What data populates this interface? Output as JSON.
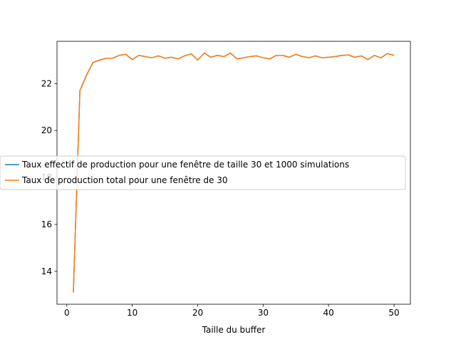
{
  "chart_data": {
    "type": "line",
    "title": "",
    "xlabel": "Taille du buffer",
    "ylabel": "",
    "xlim": [
      -1.5,
      52.5
    ],
    "ylim": [
      12.6,
      23.8
    ],
    "xticks": [
      0,
      10,
      20,
      30,
      40,
      50
    ],
    "yticks": [
      14,
      16,
      18,
      20,
      22
    ],
    "grid": false,
    "legend": "center-left",
    "x": [
      1,
      2,
      3,
      4,
      5,
      6,
      7,
      8,
      9,
      10,
      11,
      12,
      13,
      14,
      15,
      16,
      17,
      18,
      19,
      20,
      21,
      22,
      23,
      24,
      25,
      26,
      27,
      28,
      29,
      30,
      31,
      32,
      33,
      34,
      35,
      36,
      37,
      38,
      39,
      40,
      41,
      42,
      43,
      44,
      45,
      46,
      47,
      48,
      49,
      50
    ],
    "series": [
      {
        "name": "Taux effectif de production pour une fenêtre de taille 30 et 1000 simulations",
        "color": "#1f77b4",
        "values": [
          13.1,
          21.7,
          22.35,
          22.9,
          23.0,
          23.08,
          23.08,
          23.2,
          23.25,
          23.02,
          23.2,
          23.15,
          23.1,
          23.18,
          23.08,
          23.12,
          23.05,
          23.18,
          23.27,
          23.0,
          23.3,
          23.12,
          23.2,
          23.15,
          23.3,
          23.05,
          23.1,
          23.15,
          23.18,
          23.1,
          23.05,
          23.2,
          23.2,
          23.12,
          23.25,
          23.15,
          23.1,
          23.18,
          23.1,
          23.12,
          23.15,
          23.2,
          23.22,
          23.12,
          23.18,
          23.02,
          23.2,
          23.1,
          23.28,
          23.2
        ]
      },
      {
        "name": "Taux de production total pour une fenêtre de 30",
        "color": "#ff7f0e",
        "values": [
          13.1,
          21.7,
          22.35,
          22.9,
          23.0,
          23.08,
          23.08,
          23.2,
          23.25,
          23.02,
          23.2,
          23.15,
          23.1,
          23.18,
          23.08,
          23.12,
          23.05,
          23.18,
          23.27,
          23.0,
          23.3,
          23.12,
          23.2,
          23.15,
          23.3,
          23.05,
          23.1,
          23.15,
          23.18,
          23.1,
          23.05,
          23.2,
          23.2,
          23.12,
          23.25,
          23.15,
          23.1,
          23.18,
          23.1,
          23.12,
          23.15,
          23.2,
          23.22,
          23.12,
          23.18,
          23.02,
          23.2,
          23.1,
          23.28,
          23.2
        ]
      }
    ]
  }
}
